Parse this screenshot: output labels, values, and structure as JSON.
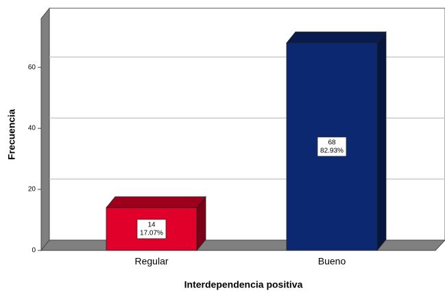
{
  "chart_data": {
    "type": "bar3d",
    "x_label": "Interdependencia positiva",
    "y_label": "Frecuencia",
    "categories": [
      "Regular",
      "Bueno"
    ],
    "values": [
      14,
      68
    ],
    "percentages": [
      17.07,
      82.93
    ],
    "percentage_labels": [
      "17.07%",
      "82.93%"
    ],
    "colors": [
      "#e0002a",
      "#0c2870"
    ],
    "ylim": [
      0,
      76
    ],
    "yticks": [
      0,
      20,
      40,
      60
    ],
    "grid": true
  }
}
